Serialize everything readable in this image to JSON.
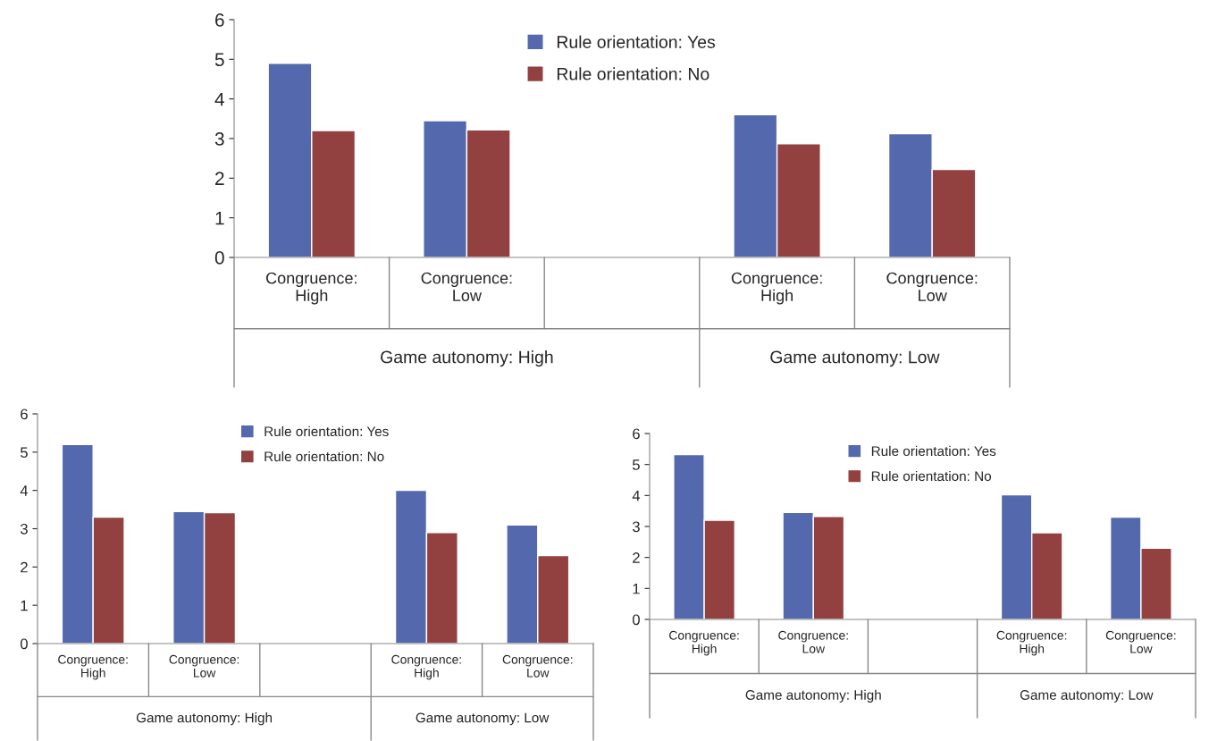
{
  "chart_data": [
    {
      "type": "bar",
      "categories": [
        "Congruence:\nHigh",
        "Congruence:\nLow",
        null,
        "Congruence:\nHigh",
        "Congruence:\nLow"
      ],
      "series": [
        {
          "name": "Rule orientation: Yes",
          "color": "#5469ad",
          "values": [
            4.9,
            3.45,
            null,
            3.6,
            3.12
          ]
        },
        {
          "name": "Rule orientation: No",
          "color": "#934140",
          "values": [
            3.2,
            3.22,
            null,
            2.87,
            2.22
          ]
        }
      ],
      "ylim": [
        0,
        6
      ],
      "yticks": [
        0,
        1,
        2,
        3,
        4,
        5,
        6
      ],
      "legend": "top",
      "annotations": [
        "Game autonomy: High",
        "Game autonomy: Low"
      ]
    },
    {
      "type": "bar",
      "categories": [
        "Congruence:\nHigh",
        "Congruence:\nLow",
        null,
        "Congruence:\nHigh",
        "Congruence:\nLow"
      ],
      "series": [
        {
          "name": "Rule orientation: Yes",
          "color": "#5469ad",
          "values": [
            5.2,
            3.45,
            null,
            4.0,
            3.1
          ]
        },
        {
          "name": "Rule orientation: No",
          "color": "#934140",
          "values": [
            3.3,
            3.42,
            null,
            2.9,
            2.3
          ]
        }
      ],
      "ylim": [
        0,
        6
      ],
      "yticks": [
        0,
        1,
        2,
        3,
        4,
        5,
        6
      ],
      "legend": "top",
      "annotations": [
        "Game autonomy: High",
        "Game autonomy: Low"
      ]
    },
    {
      "type": "bar",
      "categories": [
        "Congruence:\nHigh",
        "Congruence:\nLow",
        null,
        "Congruence:\nHigh",
        "Congruence:\nLow"
      ],
      "series": [
        {
          "name": "Rule orientation: Yes",
          "color": "#5469ad",
          "values": [
            5.32,
            3.45,
            null,
            4.02,
            3.3
          ]
        },
        {
          "name": "Rule orientation: No",
          "color": "#934140",
          "values": [
            3.2,
            3.32,
            null,
            2.8,
            2.3
          ]
        }
      ],
      "ylim": [
        0,
        6
      ],
      "yticks": [
        0,
        1,
        2,
        3,
        4,
        5,
        6
      ],
      "legend": "top",
      "annotations": [
        "Game autonomy: High",
        "Game autonomy: Low"
      ]
    }
  ]
}
